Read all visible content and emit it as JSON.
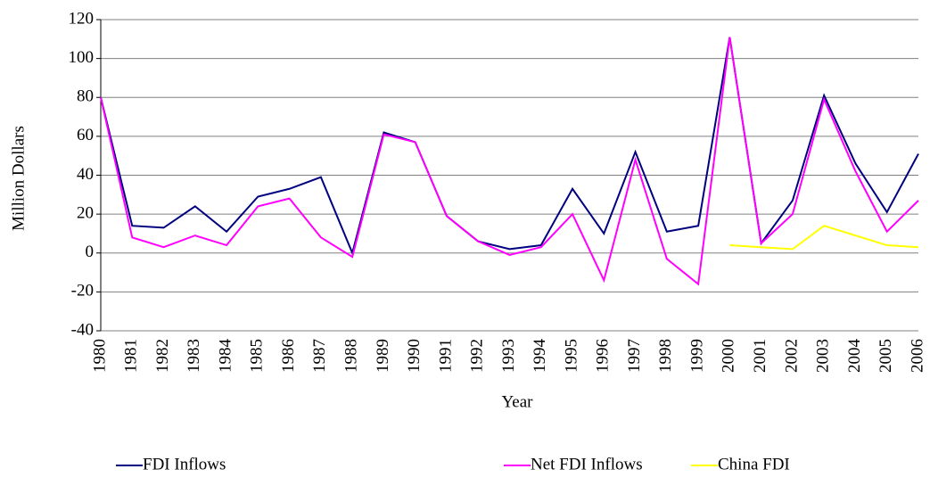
{
  "chart_data": {
    "type": "line",
    "x_label": "Year",
    "y_label": "Million Dollars",
    "categories": [
      "1980",
      "1981",
      "1982",
      "1983",
      "1984",
      "1985",
      "1986",
      "1987",
      "1988",
      "1989",
      "1990",
      "1991",
      "1992",
      "1993",
      "1994",
      "1995",
      "1996",
      "1997",
      "1998",
      "1999",
      "2000",
      "2001",
      "2002",
      "2003",
      "2004",
      "2005",
      "2006"
    ],
    "series": [
      {
        "name": "FDI Inflows",
        "color": "#000080",
        "values": [
          80,
          14,
          13,
          24,
          11,
          29,
          33,
          39,
          0,
          62,
          57,
          19,
          6,
          2,
          4,
          33,
          10,
          52,
          11,
          14,
          111,
          5,
          27,
          81,
          46,
          21,
          51
        ]
      },
      {
        "name": "Net FDI Inflows",
        "color": "#ff00ff",
        "values": [
          80,
          8,
          3,
          9,
          4,
          24,
          28,
          8,
          -2,
          61,
          57,
          19,
          6,
          -1,
          3,
          20,
          -14,
          48,
          -3,
          -16,
          111,
          5,
          20,
          79,
          42,
          11,
          27
        ]
      },
      {
        "name": "China FDI",
        "color": "#ffff00",
        "values": [
          null,
          null,
          null,
          null,
          null,
          null,
          null,
          null,
          null,
          null,
          null,
          null,
          null,
          null,
          null,
          null,
          null,
          null,
          null,
          null,
          4,
          3,
          2,
          14,
          9,
          4,
          3
        ]
      }
    ],
    "ylim": [
      -40,
      120
    ],
    "yticks": [
      -40,
      -20,
      0,
      20,
      40,
      60,
      80,
      100,
      120
    ],
    "grid": true,
    "legend": "bottom"
  }
}
